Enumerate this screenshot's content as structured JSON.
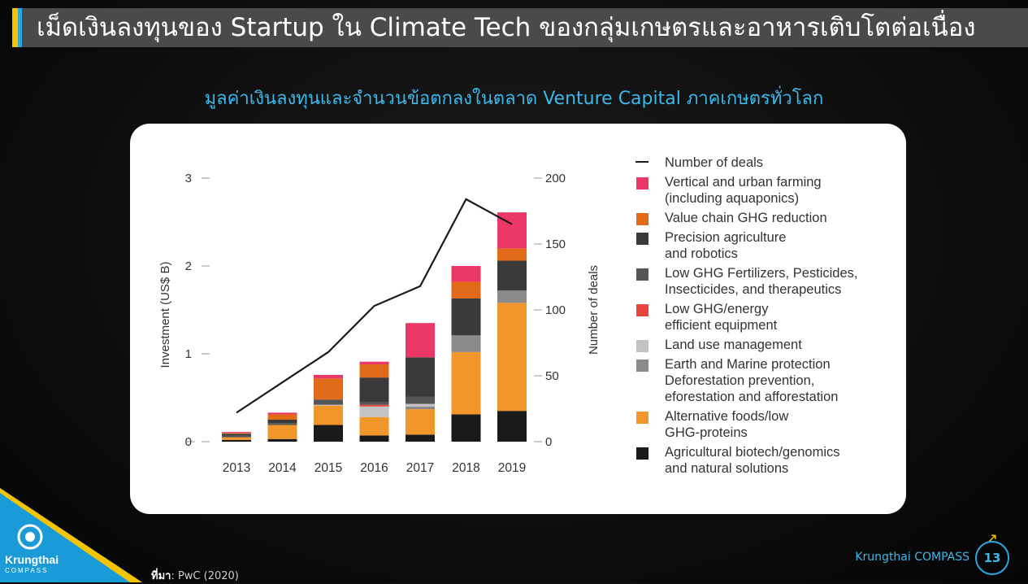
{
  "header": {
    "title": "เม็ดเงินลงทุนของ Startup ใน Climate Tech ของกลุ่มเกษตรและอาหารเติบโตต่อเนื่อง"
  },
  "subtitle": "มูลค่าเงินลงทุนและจำนวนข้อตกลงในตลาด Venture Capital ภาคเกษตรทั่วโลก",
  "chart_data": {
    "type": "bar",
    "stacked": true,
    "categories": [
      "2013",
      "2014",
      "2015",
      "2016",
      "2017",
      "2018",
      "2019"
    ],
    "ylabel": "Investment (US$ B)",
    "y2label": "Number of deals",
    "ylim": [
      0,
      3
    ],
    "y2lim": [
      0,
      200
    ],
    "yticks": [
      "0",
      "1",
      "2",
      "3"
    ],
    "y2ticks": [
      "0",
      "50",
      "100",
      "150",
      "200"
    ],
    "legend_position": "right",
    "series": [
      {
        "name": "Agricultural biotech/genomics\nand natural solutions",
        "color": "#1a1a1a",
        "values": [
          0.02,
          0.03,
          0.19,
          0.07,
          0.08,
          0.31,
          0.35
        ]
      },
      {
        "name": "Alternative foods/low\nGHG-proteins",
        "color": "#f0962a",
        "values": [
          0.03,
          0.16,
          0.22,
          0.21,
          0.29,
          0.71,
          1.23
        ]
      },
      {
        "name": "Earth and Marine protection\nDeforestation prevention,\neforestation and afforestation",
        "color": "#8a8a8a",
        "values": [
          0.0,
          0.0,
          0.0,
          0.0,
          0.03,
          0.19,
          0.14
        ]
      },
      {
        "name": "Land use management",
        "color": "#c2c2c2",
        "values": [
          0.0,
          0.0,
          0.01,
          0.12,
          0.03,
          0.0,
          0.0
        ]
      },
      {
        "name": "Low GHG/energy\nefficient equipment",
        "color": "#e8453c",
        "values": [
          0.0,
          0.0,
          0.0,
          0.02,
          0.0,
          0.0,
          0.0
        ]
      },
      {
        "name": "Low GHG Fertilizers, Pesticides,\nInsecticides, and therapeutics",
        "color": "#555555",
        "values": [
          0.02,
          0.02,
          0.06,
          0.03,
          0.08,
          0.0,
          0.0
        ]
      },
      {
        "name": "Precision agriculture\nand robotics",
        "color": "#3a3a3a",
        "values": [
          0.02,
          0.04,
          0.0,
          0.28,
          0.45,
          0.42,
          0.34
        ]
      },
      {
        "name": "Value chain GHG reduction",
        "color": "#e06a18",
        "values": [
          0.01,
          0.06,
          0.24,
          0.15,
          0.0,
          0.19,
          0.14
        ]
      },
      {
        "name": "Vertical and urban farming\n(including aquaponics)",
        "color": "#ea3766",
        "values": [
          0.01,
          0.02,
          0.04,
          0.03,
          0.39,
          0.18,
          0.41
        ]
      }
    ],
    "line": {
      "name": "Number of deals",
      "color": "#1a1a1a",
      "values": [
        22,
        45,
        68,
        103,
        118,
        184,
        165
      ]
    }
  },
  "legend_order": [
    "line",
    8,
    7,
    6,
    5,
    4,
    3,
    2,
    1,
    0
  ],
  "source": {
    "label": "ที่มา",
    "text": ": PwC (2020)"
  },
  "footer": {
    "brand": "Krungthai COMPASS",
    "page": "13"
  },
  "logo": {
    "name": "Krungthai",
    "sub": "COMPASS"
  }
}
